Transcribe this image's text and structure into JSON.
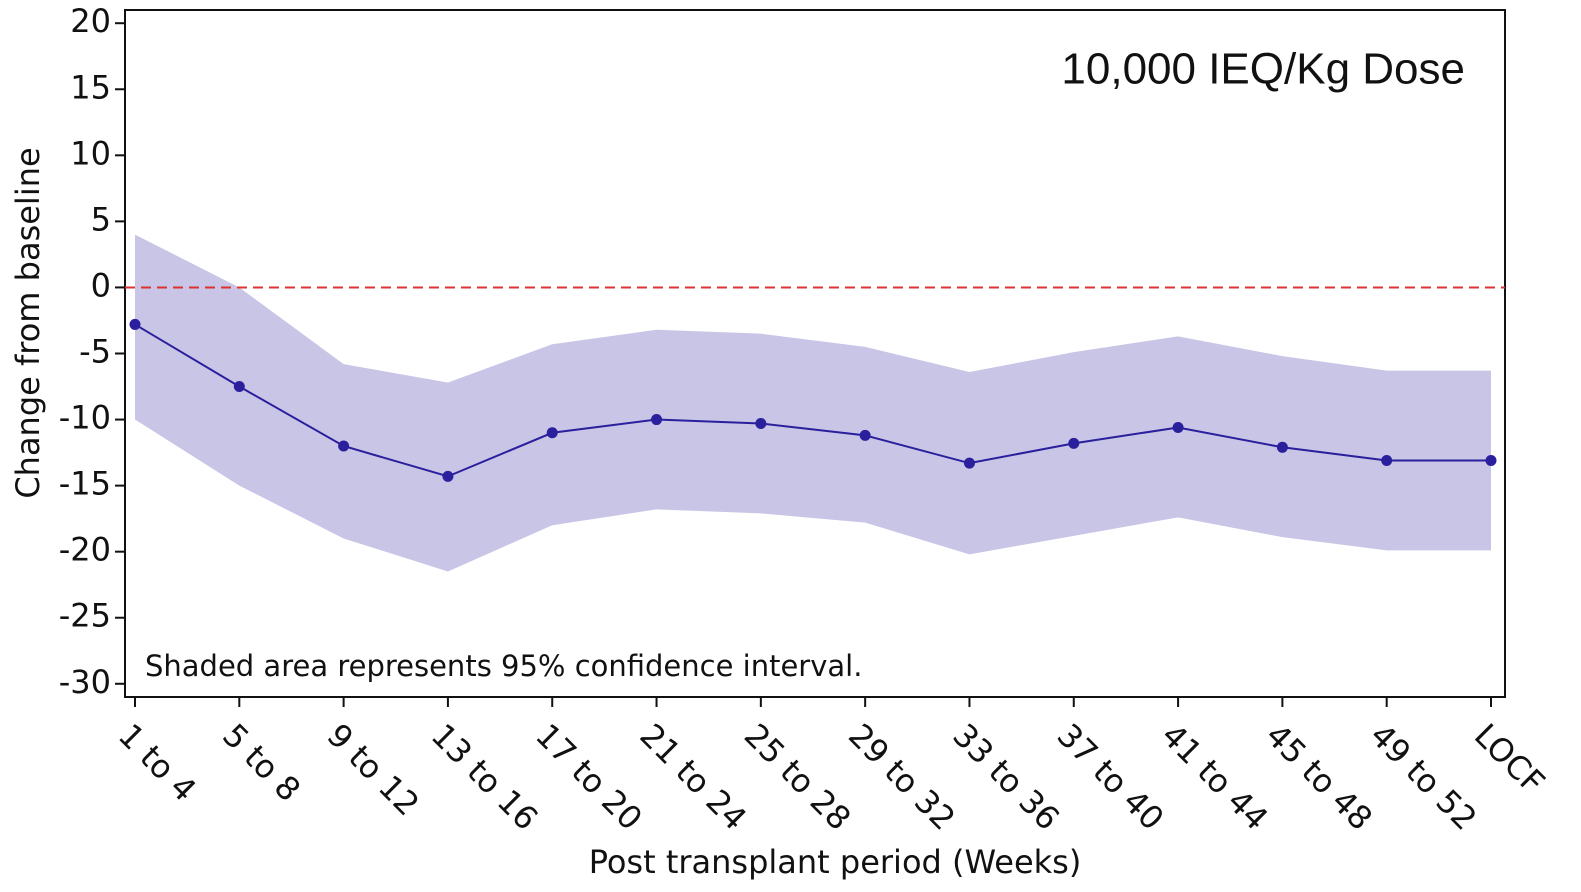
{
  "chart_data": {
    "type": "line",
    "title": "10,000 IEQ/Kg Dose",
    "annotation": "Shaded area represents 95% confidence interval.",
    "x_label": "Post transplant period (Weeks)",
    "y_label": "Change from baseline",
    "categories": [
      "1 to 4",
      "5 to 8",
      "9 to 12",
      "13 to 16",
      "17 to 20",
      "21 to 24",
      "25 to 28",
      "29 to 32",
      "33 to 36",
      "37 to 40",
      "41 to 44",
      "45 to 48",
      "49 to 52",
      "LOCF"
    ],
    "values": [
      -2.8,
      -7.5,
      -12.0,
      -14.3,
      -11.0,
      -10.0,
      -10.3,
      -11.2,
      -13.3,
      -11.8,
      -10.6,
      -12.1,
      -13.1,
      -13.1
    ],
    "upper": [
      4.0,
      0.0,
      -5.8,
      -7.2,
      -4.3,
      -3.2,
      -3.5,
      -4.5,
      -6.4,
      -4.9,
      -3.7,
      -5.2,
      -6.3,
      -6.3
    ],
    "lower": [
      -10.0,
      -15.0,
      -19.0,
      -21.5,
      -18.0,
      -16.8,
      -17.1,
      -17.8,
      -20.2,
      -18.8,
      -17.4,
      -18.9,
      -19.9,
      -19.9
    ],
    "color": "#2a1f9c",
    "band_color": "#c8c5e6",
    "reference_line": 0,
    "reference_color": "#e03030",
    "ylim": [
      -31,
      21
    ],
    "yticks": [
      -30,
      -25,
      -20,
      -15,
      -10,
      -5,
      0,
      5,
      10,
      15,
      20
    ]
  }
}
